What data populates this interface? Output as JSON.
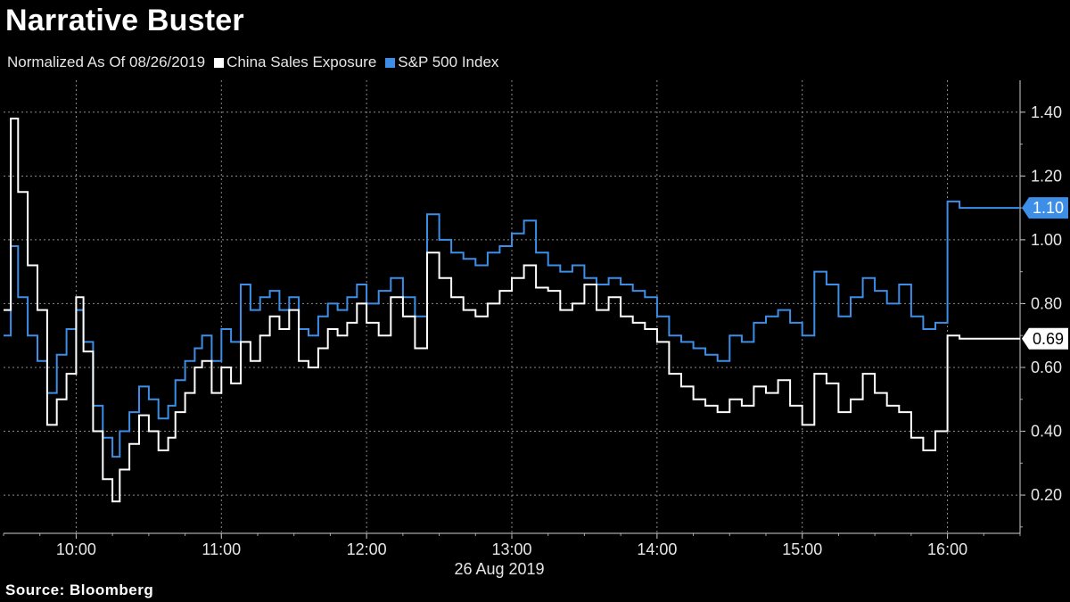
{
  "header": {
    "title": "Narrative Buster",
    "subtitle": "Normalized As Of 08/26/2019"
  },
  "footer": {
    "source": "Source:  Bloomberg"
  },
  "chart_data": {
    "type": "line",
    "title": "Narrative Buster",
    "subtitle": "Normalized As Of 08/26/2019",
    "xlabel": "26 Aug 2019",
    "ylabel": "",
    "x_ticks": [
      "10:00",
      "11:00",
      "12:00",
      "13:00",
      "14:00",
      "15:00",
      "16:00"
    ],
    "y_ticks": [
      "0.20",
      "0.40",
      "0.60",
      "0.80",
      "1.00",
      "1.20",
      "1.40"
    ],
    "xlim": [
      "09:30",
      "16:30"
    ],
    "ylim": [
      0.08,
      1.5
    ],
    "grid": true,
    "legend_position": "top-left",
    "colors": {
      "China Sales Exposure": "#ffffff",
      "S&P 500 Index": "#3d8ee6"
    },
    "series": [
      {
        "name": "China Sales Exposure",
        "color": "#ffffff",
        "last_value_label": "0.69",
        "x": [
          "09:30",
          "09:33",
          "09:36",
          "09:40",
          "09:44",
          "09:48",
          "09:52",
          "09:56",
          "10:00",
          "10:03",
          "10:07",
          "10:11",
          "10:15",
          "10:18",
          "10:22",
          "10:26",
          "10:30",
          "10:34",
          "10:38",
          "10:41",
          "10:45",
          "10:49",
          "10:52",
          "10:56",
          "11:00",
          "11:04",
          "11:08",
          "11:12",
          "11:16",
          "11:20",
          "11:24",
          "11:28",
          "11:32",
          "11:36",
          "11:40",
          "11:44",
          "11:48",
          "11:52",
          "11:56",
          "12:00",
          "12:05",
          "12:10",
          "12:15",
          "12:20",
          "12:25",
          "12:30",
          "12:35",
          "12:40",
          "12:45",
          "12:50",
          "12:55",
          "13:00",
          "13:05",
          "13:10",
          "13:15",
          "13:20",
          "13:25",
          "13:30",
          "13:35",
          "13:40",
          "13:45",
          "13:50",
          "13:55",
          "14:00",
          "14:05",
          "14:10",
          "14:15",
          "14:20",
          "14:25",
          "14:30",
          "14:35",
          "14:40",
          "14:45",
          "14:50",
          "14:55",
          "15:00",
          "15:05",
          "15:10",
          "15:15",
          "15:20",
          "15:25",
          "15:30",
          "15:35",
          "15:40",
          "15:45",
          "15:50",
          "15:55",
          "16:00",
          "16:05",
          "16:10",
          "16:15",
          "16:20",
          "16:25",
          "16:30"
        ],
        "values": [
          0.78,
          1.38,
          1.15,
          0.92,
          0.78,
          0.42,
          0.5,
          0.58,
          0.82,
          0.65,
          0.4,
          0.25,
          0.18,
          0.28,
          0.36,
          0.45,
          0.4,
          0.34,
          0.38,
          0.46,
          0.52,
          0.6,
          0.62,
          0.52,
          0.6,
          0.55,
          0.68,
          0.62,
          0.7,
          0.76,
          0.72,
          0.78,
          0.62,
          0.6,
          0.66,
          0.72,
          0.7,
          0.74,
          0.8,
          0.74,
          0.7,
          0.82,
          0.76,
          0.66,
          0.96,
          0.88,
          0.82,
          0.78,
          0.76,
          0.8,
          0.84,
          0.88,
          0.92,
          0.85,
          0.84,
          0.78,
          0.8,
          0.86,
          0.78,
          0.82,
          0.76,
          0.74,
          0.72,
          0.68,
          0.58,
          0.54,
          0.5,
          0.48,
          0.46,
          0.5,
          0.48,
          0.54,
          0.52,
          0.56,
          0.48,
          0.42,
          0.58,
          0.55,
          0.46,
          0.5,
          0.58,
          0.52,
          0.48,
          0.46,
          0.38,
          0.34,
          0.4,
          0.7,
          0.69,
          0.69,
          0.69,
          0.69,
          0.69,
          0.69
        ]
      },
      {
        "name": "S&P 500 Index",
        "color": "#3d8ee6",
        "last_value_label": "1.10",
        "x": [
          "09:30",
          "09:33",
          "09:36",
          "09:40",
          "09:44",
          "09:48",
          "09:52",
          "09:56",
          "10:00",
          "10:03",
          "10:07",
          "10:11",
          "10:15",
          "10:18",
          "10:22",
          "10:26",
          "10:30",
          "10:34",
          "10:38",
          "10:41",
          "10:45",
          "10:49",
          "10:52",
          "10:56",
          "11:00",
          "11:04",
          "11:08",
          "11:12",
          "11:16",
          "11:20",
          "11:24",
          "11:28",
          "11:32",
          "11:36",
          "11:40",
          "11:44",
          "11:48",
          "11:52",
          "11:56",
          "12:00",
          "12:05",
          "12:10",
          "12:15",
          "12:20",
          "12:25",
          "12:30",
          "12:35",
          "12:40",
          "12:45",
          "12:50",
          "12:55",
          "13:00",
          "13:05",
          "13:10",
          "13:15",
          "13:20",
          "13:25",
          "13:30",
          "13:35",
          "13:40",
          "13:45",
          "13:50",
          "13:55",
          "14:00",
          "14:05",
          "14:10",
          "14:15",
          "14:20",
          "14:25",
          "14:30",
          "14:35",
          "14:40",
          "14:45",
          "14:50",
          "14:55",
          "15:00",
          "15:05",
          "15:10",
          "15:15",
          "15:20",
          "15:25",
          "15:30",
          "15:35",
          "15:40",
          "15:45",
          "15:50",
          "15:55",
          "16:00",
          "16:05",
          "16:10",
          "16:15",
          "16:20",
          "16:25",
          "16:30"
        ],
        "values": [
          0.7,
          0.98,
          0.82,
          0.7,
          0.62,
          0.52,
          0.64,
          0.72,
          0.78,
          0.68,
          0.48,
          0.38,
          0.32,
          0.4,
          0.46,
          0.54,
          0.5,
          0.44,
          0.48,
          0.56,
          0.62,
          0.66,
          0.7,
          0.62,
          0.72,
          0.68,
          0.86,
          0.78,
          0.82,
          0.84,
          0.78,
          0.82,
          0.72,
          0.7,
          0.76,
          0.8,
          0.78,
          0.82,
          0.86,
          0.8,
          0.84,
          0.88,
          0.82,
          0.76,
          1.08,
          1.0,
          0.96,
          0.94,
          0.92,
          0.96,
          0.98,
          1.02,
          1.06,
          0.96,
          0.92,
          0.9,
          0.92,
          0.88,
          0.86,
          0.88,
          0.86,
          0.84,
          0.82,
          0.76,
          0.7,
          0.68,
          0.66,
          0.64,
          0.62,
          0.7,
          0.68,
          0.74,
          0.76,
          0.78,
          0.74,
          0.7,
          0.9,
          0.86,
          0.76,
          0.82,
          0.88,
          0.84,
          0.8,
          0.86,
          0.76,
          0.72,
          0.74,
          1.12,
          1.1,
          1.1,
          1.1,
          1.1,
          1.1,
          1.1
        ]
      }
    ]
  }
}
